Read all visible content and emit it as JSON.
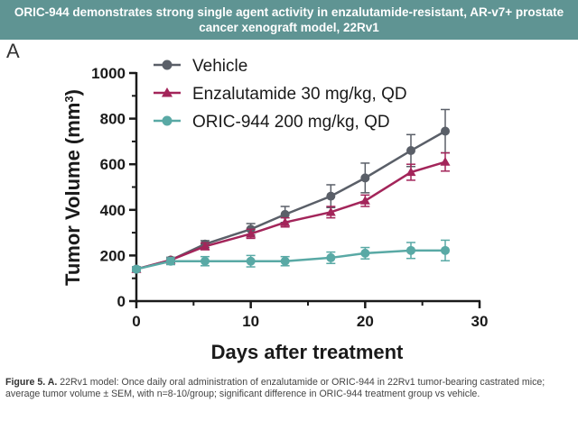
{
  "banner_title": "ORIC-944 demonstrates strong single agent activity in enzalutamide-resistant, AR-v7+ prostate cancer xenograft model, 22Rv1",
  "panel_label": "A",
  "caption": {
    "label": "Figure 5. A.",
    "text": " 22Rv1 model: Once daily oral administration of enzalutamide or ORIC-944 in 22Rv1 tumor-bearing castrated mice; average tumor volume ± SEM, with n=8-10/group; significant difference in ORIC-944 treatment group vs vehicle."
  },
  "chart_data": {
    "type": "line",
    "xlabel": "Days after treatment",
    "ylabel_main": "Tumor Volume (mm",
    "ylabel_sup": "3",
    "ylabel_close": ")",
    "xlim": [
      0,
      30
    ],
    "ylim": [
      0,
      1000
    ],
    "xticks": [
      0,
      10,
      20,
      30
    ],
    "yticks": [
      0,
      200,
      400,
      600,
      800,
      1000
    ],
    "legend_position": "top-left",
    "grid": false,
    "series": [
      {
        "name": "Vehicle",
        "color": "#5a5f68",
        "marker": "circle",
        "x": [
          0,
          3,
          6,
          10,
          13,
          17,
          20,
          24,
          27
        ],
        "y": [
          140,
          180,
          250,
          315,
          380,
          460,
          540,
          660,
          745
        ],
        "err": [
          10,
          12,
          15,
          25,
          35,
          50,
          65,
          70,
          95
        ]
      },
      {
        "name": "Enzalutamide 30 mg/kg, QD",
        "color": "#a3255a",
        "marker": "triangle",
        "x": [
          0,
          3,
          6,
          10,
          13,
          17,
          20,
          24,
          27
        ],
        "y": [
          140,
          180,
          240,
          295,
          345,
          390,
          440,
          565,
          610
        ],
        "err": [
          10,
          10,
          15,
          20,
          20,
          25,
          25,
          35,
          40
        ]
      },
      {
        "name": "ORIC-944 200 mg/kg, QD",
        "color": "#59a9a5",
        "marker": "circle",
        "x": [
          0,
          3,
          6,
          10,
          13,
          17,
          20,
          24,
          27
        ],
        "y": [
          140,
          175,
          175,
          175,
          175,
          190,
          210,
          222,
          222
        ],
        "err": [
          10,
          15,
          20,
          25,
          20,
          25,
          25,
          35,
          45
        ]
      }
    ]
  }
}
